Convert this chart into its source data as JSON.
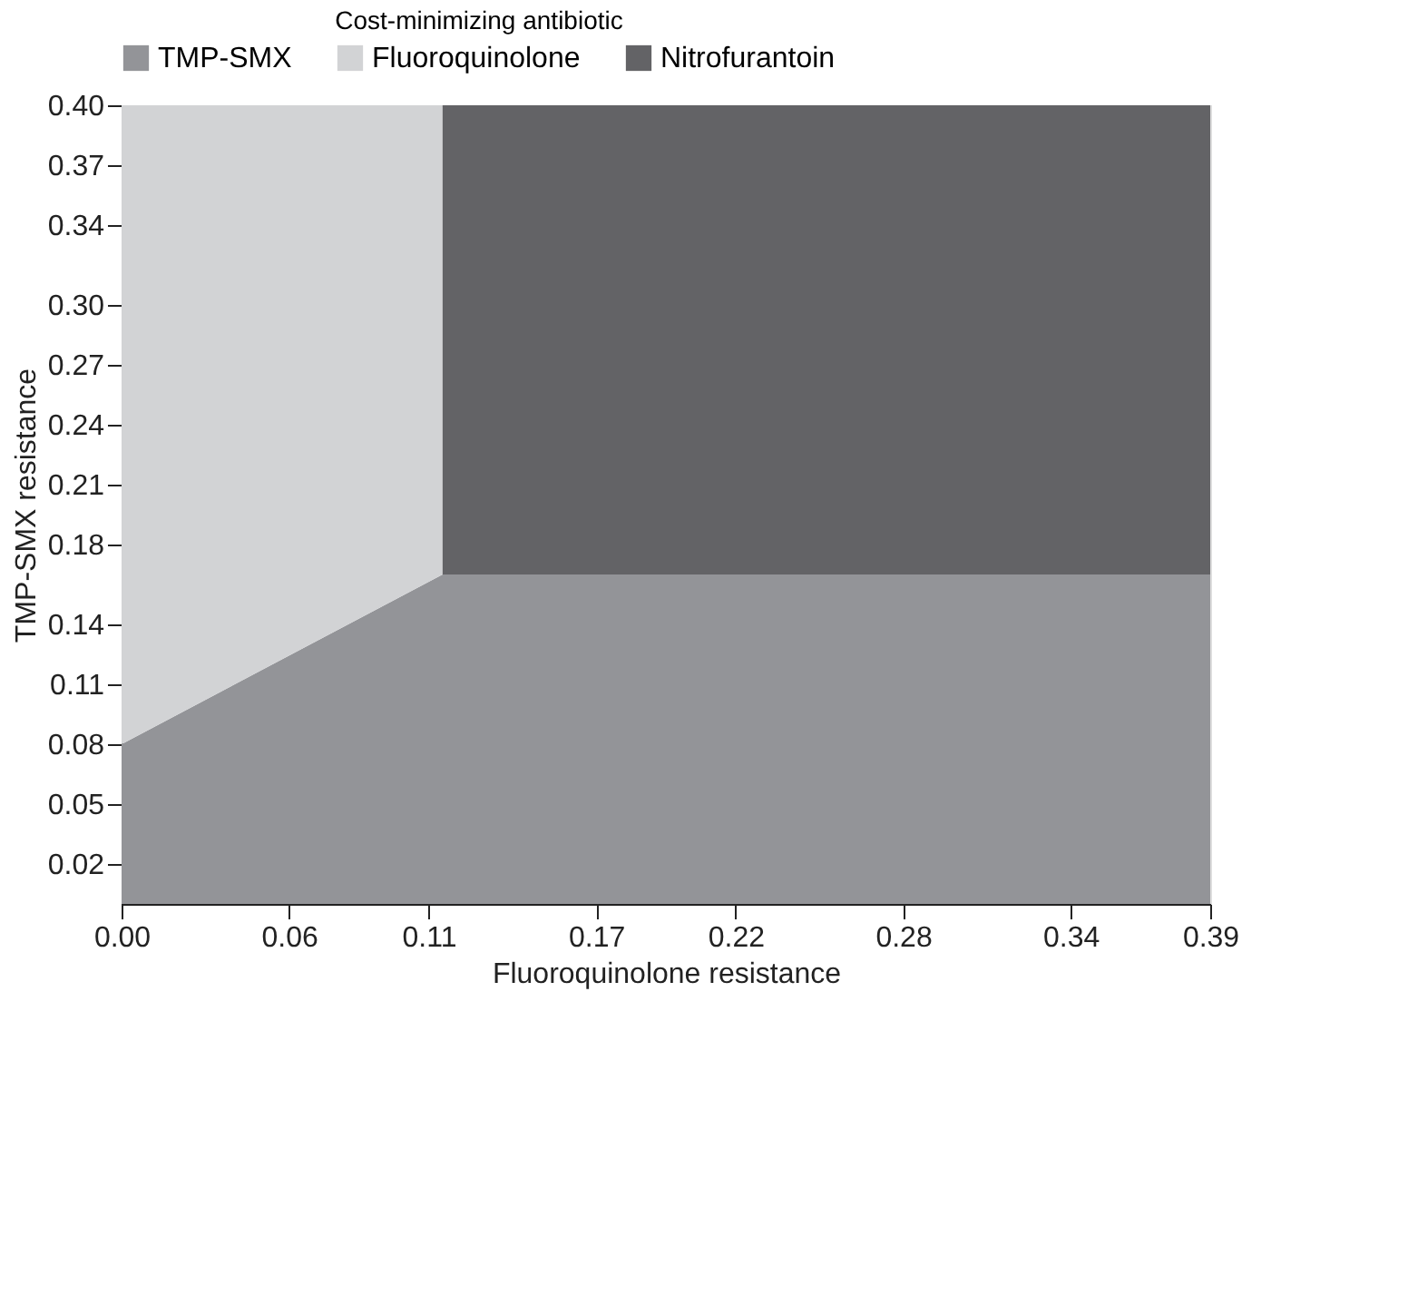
{
  "chart_data": {
    "type": "area",
    "stacked": true,
    "xlabel": "Fluoroquinolone resistance",
    "ylabel": "TMP-SMX resistance",
    "legend_title": "Cost-minimizing antibiotic",
    "x": [
      0,
      0.115,
      0.115,
      0.39
    ],
    "series": [
      {
        "name": "TMP-SMX",
        "color": "#939498",
        "values": [
          0.08,
          0.165,
          0.165,
          0.165
        ]
      },
      {
        "name": "Fluoroquinolone",
        "color": "#d2d3d5",
        "values": [
          0.32,
          0.235,
          0,
          0
        ]
      },
      {
        "name": "Nitrofurantoin",
        "color": "#636366",
        "values": [
          0,
          0,
          0.235,
          0.235
        ]
      }
    ],
    "xlim": [
      0,
      0.39
    ],
    "ylim": [
      0,
      0.4
    ],
    "xticks": [
      {
        "value": 0,
        "label": "0.00"
      },
      {
        "value": 0.06,
        "label": "0.06"
      },
      0.11,
      0.17,
      0.22,
      0.28,
      0.34,
      0.39
    ],
    "yticks": [
      0.02,
      0.05,
      0.08,
      0.11,
      0.14,
      0.18,
      0.21,
      0.24,
      0.27,
      {
        "value": 0.3,
        "label": "0.30"
      },
      0.34,
      0.37,
      {
        "value": 0.4,
        "label": "0.40"
      }
    ],
    "grid": false,
    "legend": "top"
  }
}
